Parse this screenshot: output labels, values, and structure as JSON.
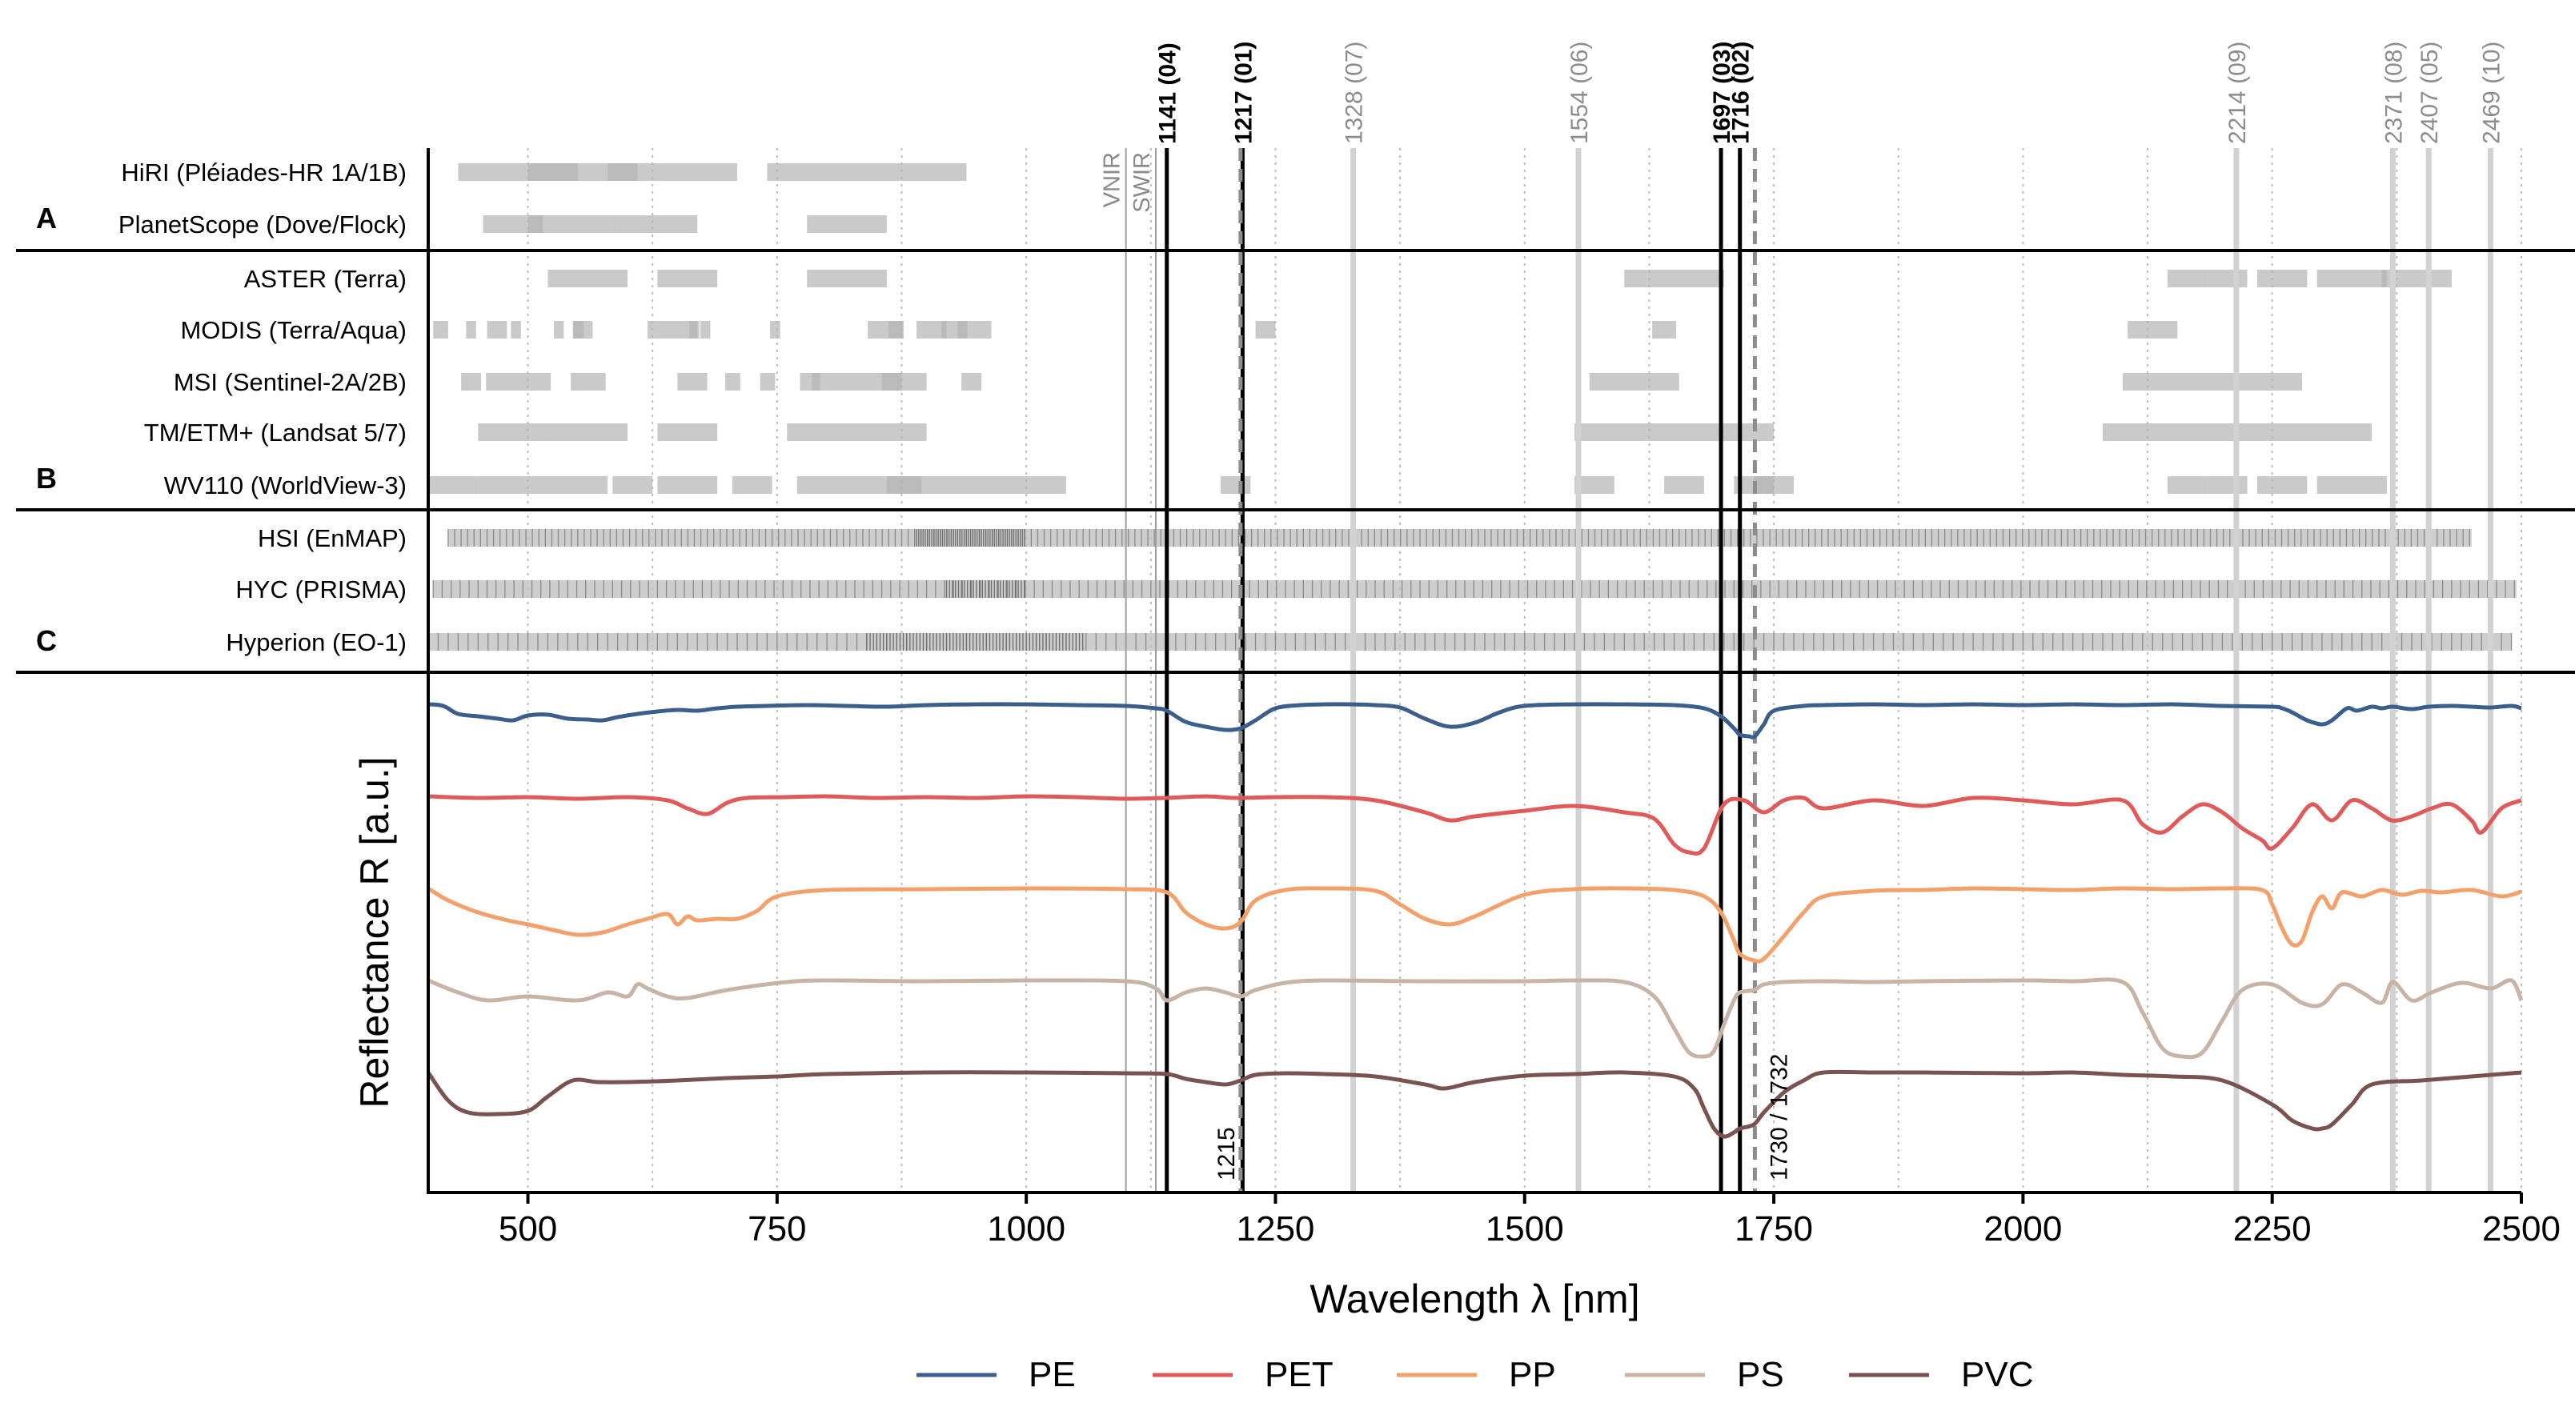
{
  "chart_data": {
    "type": "line",
    "xlabel": "Wavelength λ [nm]",
    "ylabel": "Reflectance R [a.u.]",
    "xlim": [
      400,
      2500
    ],
    "x_ticks": [
      500,
      750,
      1000,
      1250,
      1500,
      1750,
      2000,
      2250,
      2500
    ],
    "grid_dotted_x": [
      500,
      625,
      750,
      875,
      1000,
      1125,
      1250,
      1375,
      1500,
      1625,
      1750,
      1875,
      2000,
      2125,
      2250,
      2375,
      2500
    ],
    "region_labels": {
      "vnir": "VNIR",
      "swir": "SWIR",
      "vnir_x": 1100,
      "swir_x": 1130
    },
    "panel_letters": [
      "A",
      "B",
      "C"
    ],
    "vertical_markers": [
      {
        "x": 1141,
        "label": "1141 (04)",
        "style": "black"
      },
      {
        "x": 1217,
        "label": "1217 (01)",
        "style": "black"
      },
      {
        "x": 1328,
        "label": "1328 (07)",
        "style": "gray"
      },
      {
        "x": 1554,
        "label": "1554 (06)",
        "style": "gray"
      },
      {
        "x": 1697,
        "label": "1697 (03)",
        "style": "black"
      },
      {
        "x": 1716,
        "label": "1716 (02)",
        "style": "black"
      },
      {
        "x": 2214,
        "label": "2214 (09)",
        "style": "gray"
      },
      {
        "x": 2371,
        "label": "2371 (08)",
        "style": "gray"
      },
      {
        "x": 2407,
        "label": "2407 (05)",
        "style": "gray"
      },
      {
        "x": 2469,
        "label": "2469 (10)",
        "style": "gray"
      }
    ],
    "dashed_markers": [
      {
        "x": 1215,
        "label": "1215"
      },
      {
        "x": 1731,
        "label": "1730 / 1732"
      }
    ],
    "sensors": [
      {
        "name": "HiRI (Pléiades-HR 1A/1B)",
        "group": "A",
        "bands": [
          [
            430,
            550
          ],
          [
            500,
            610
          ],
          [
            580,
            710
          ],
          [
            740,
            940
          ]
        ]
      },
      {
        "name": "PlanetScope (Dove/Flock)",
        "group": "A",
        "bands": [
          [
            455,
            515
          ],
          [
            500,
            590
          ],
          [
            590,
            670
          ],
          [
            780,
            860
          ]
        ]
      },
      {
        "name": "ASTER (Terra)",
        "group": "B",
        "bands": [
          [
            520,
            600
          ],
          [
            630,
            690
          ],
          [
            780,
            860
          ],
          [
            1600,
            1700
          ],
          [
            2145,
            2185
          ],
          [
            2185,
            2225
          ],
          [
            2235,
            2285
          ],
          [
            2295,
            2365
          ],
          [
            2360,
            2430
          ]
        ]
      },
      {
        "name": "MODIS (Terra/Aqua)",
        "group": "B",
        "bands": [
          [
            405,
            420
          ],
          [
            438,
            448
          ],
          [
            459,
            479
          ],
          [
            483,
            493
          ],
          [
            526,
            536
          ],
          [
            545,
            565
          ],
          [
            546,
            556
          ],
          [
            620,
            670
          ],
          [
            662,
            672
          ],
          [
            673,
            683
          ],
          [
            743,
            753
          ],
          [
            841,
            876
          ],
          [
            862,
            877
          ],
          [
            890,
            920
          ],
          [
            931,
            941
          ],
          [
            915,
            965
          ],
          [
            1230,
            1250
          ],
          [
            1628,
            1652
          ],
          [
            2105,
            2155
          ]
        ]
      },
      {
        "name": "MSI (Sentinel-2A/2B)",
        "group": "B",
        "bands": [
          [
            433,
            453
          ],
          [
            458,
            523
          ],
          [
            543,
            578
          ],
          [
            650,
            680
          ],
          [
            698,
            713
          ],
          [
            733,
            748
          ],
          [
            773,
            793
          ],
          [
            785,
            900
          ],
          [
            855,
            875
          ],
          [
            935,
            955
          ],
          [
            1565,
            1655
          ],
          [
            2100,
            2280
          ]
        ]
      },
      {
        "name": "TM/ETM+ (Landsat 5/7)",
        "group": "B",
        "bands": [
          [
            450,
            520
          ],
          [
            520,
            600
          ],
          [
            630,
            690
          ],
          [
            760,
            900
          ],
          [
            1550,
            1750
          ],
          [
            2080,
            2350
          ]
        ]
      },
      {
        "name": "WV110 (WorldView-3)",
        "group": "B",
        "bands": [
          [
            400,
            450
          ],
          [
            450,
            510
          ],
          [
            510,
            580
          ],
          [
            585,
            625
          ],
          [
            630,
            690
          ],
          [
            705,
            745
          ],
          [
            770,
            895
          ],
          [
            860,
            1040
          ],
          [
            1195,
            1225
          ],
          [
            1550,
            1590
          ],
          [
            1640,
            1680
          ],
          [
            1710,
            1750
          ],
          [
            1730,
            1770
          ],
          [
            2145,
            2185
          ],
          [
            2185,
            2225
          ],
          [
            2235,
            2285
          ],
          [
            2295,
            2365
          ]
        ]
      },
      {
        "name": "HSI (EnMAP)",
        "group": "C",
        "start": 420,
        "end": 2450,
        "step": 6.5,
        "dense": [
          890,
          1000
        ]
      },
      {
        "name": "HYC (PRISMA)",
        "group": "C",
        "start": 405,
        "end": 2495,
        "step": 9,
        "dense": [
          920,
          1000
        ]
      },
      {
        "name": "Hyperion (EO-1)",
        "group": "C",
        "start": 400,
        "end": 2490,
        "step": 10,
        "dense": [
          840,
          1060
        ]
      }
    ],
    "series": [
      {
        "name": "PE",
        "color": "#3b5e8c",
        "offset": 0.0,
        "x": [
          400,
          415,
          430,
          450,
          470,
          485,
          500,
          520,
          540,
          560,
          575,
          590,
          610,
          630,
          650,
          670,
          690,
          710,
          740,
          780,
          820,
          860,
          900,
          950,
          1000,
          1050,
          1100,
          1130,
          1141,
          1160,
          1180,
          1200,
          1215,
          1230,
          1250,
          1275,
          1300,
          1325,
          1350,
          1375,
          1400,
          1425,
          1450,
          1475,
          1500,
          1550,
          1600,
          1650,
          1680,
          1697,
          1710,
          1716,
          1725,
          1731,
          1740,
          1750,
          1780,
          1800,
          1850,
          1900,
          1950,
          2000,
          2050,
          2100,
          2150,
          2200,
          2250,
          2260,
          2270,
          2285,
          2300,
          2310,
          2325,
          2335,
          2350,
          2360,
          2371,
          2390,
          2407,
          2430,
          2450,
          2469,
          2490,
          2500
        ],
        "y": [
          1.0,
          0.98,
          0.88,
          0.85,
          0.82,
          0.8,
          0.86,
          0.87,
          0.82,
          0.81,
          0.8,
          0.84,
          0.88,
          0.91,
          0.93,
          0.92,
          0.95,
          0.97,
          0.98,
          0.99,
          0.98,
          0.97,
          0.99,
          1.0,
          1.0,
          0.99,
          0.98,
          0.95,
          0.92,
          0.78,
          0.72,
          0.68,
          0.7,
          0.8,
          0.95,
          0.99,
          1.0,
          1.0,
          0.99,
          0.96,
          0.82,
          0.72,
          0.77,
          0.9,
          0.98,
          1.0,
          1.0,
          0.99,
          0.95,
          0.85,
          0.7,
          0.62,
          0.6,
          0.6,
          0.75,
          0.92,
          0.98,
          0.99,
          1.0,
          0.99,
          1.0,
          0.99,
          1.0,
          0.99,
          1.0,
          0.98,
          0.97,
          0.95,
          0.9,
          0.8,
          0.75,
          0.8,
          0.95,
          0.92,
          0.97,
          0.95,
          0.97,
          0.94,
          0.97,
          0.98,
          0.97,
          0.96,
          0.98,
          0.95
        ]
      },
      {
        "name": "PET",
        "color": "#e05a5a",
        "offset": 1.0,
        "x": [
          400,
          450,
          500,
          550,
          600,
          640,
          660,
          680,
          700,
          720,
          760,
          800,
          850,
          900,
          950,
          1000,
          1050,
          1100,
          1140,
          1180,
          1210,
          1250,
          1300,
          1350,
          1400,
          1425,
          1450,
          1500,
          1550,
          1600,
          1630,
          1650,
          1665,
          1680,
          1700,
          1720,
          1740,
          1760,
          1780,
          1800,
          1850,
          1900,
          1950,
          2000,
          2050,
          2100,
          2120,
          2140,
          2160,
          2180,
          2200,
          2220,
          2240,
          2250,
          2270,
          2290,
          2310,
          2330,
          2350,
          2370,
          2390,
          2410,
          2430,
          2450,
          2460,
          2480,
          2500
        ],
        "y": [
          1.0,
          0.98,
          0.99,
          0.97,
          0.99,
          0.95,
          0.85,
          0.78,
          0.92,
          0.98,
          0.99,
          1.0,
          0.98,
          0.99,
          0.98,
          1.0,
          0.99,
          0.97,
          0.98,
          1.0,
          0.98,
          0.99,
          0.99,
          0.95,
          0.8,
          0.7,
          0.75,
          0.82,
          0.88,
          0.8,
          0.72,
          0.4,
          0.3,
          0.35,
          0.9,
          0.95,
          0.8,
          0.95,
          0.98,
          0.85,
          0.95,
          0.88,
          0.98,
          0.95,
          0.9,
          0.95,
          0.65,
          0.55,
          0.75,
          0.9,
          0.8,
          0.6,
          0.45,
          0.35,
          0.6,
          0.9,
          0.7,
          0.95,
          0.85,
          0.7,
          0.75,
          0.85,
          0.9,
          0.7,
          0.55,
          0.85,
          0.95
        ]
      },
      {
        "name": "PP",
        "color": "#f4a06a",
        "offset": 2.0,
        "x": [
          400,
          420,
          450,
          480,
          500,
          525,
          550,
          575,
          600,
          620,
          640,
          650,
          660,
          670,
          690,
          710,
          730,
          750,
          800,
          900,
          1000,
          1100,
          1141,
          1160,
          1180,
          1200,
          1215,
          1230,
          1260,
          1300,
          1350,
          1375,
          1400,
          1425,
          1450,
          1500,
          1550,
          1600,
          1650,
          1680,
          1697,
          1710,
          1716,
          1730,
          1740,
          1760,
          1780,
          1800,
          1850,
          1900,
          1950,
          2000,
          2050,
          2100,
          2150,
          2200,
          2240,
          2250,
          2260,
          2270,
          2280,
          2290,
          2300,
          2310,
          2320,
          2340,
          2360,
          2380,
          2400,
          2420,
          2450,
          2480,
          2500
        ],
        "y": [
          1.0,
          0.85,
          0.7,
          0.6,
          0.55,
          0.48,
          0.42,
          0.45,
          0.55,
          0.62,
          0.68,
          0.55,
          0.65,
          0.6,
          0.62,
          0.62,
          0.72,
          0.9,
          0.98,
          0.99,
          1.0,
          0.99,
          0.95,
          0.7,
          0.55,
          0.5,
          0.58,
          0.85,
          0.98,
          1.0,
          0.97,
          0.8,
          0.62,
          0.55,
          0.65,
          0.92,
          0.99,
          1.0,
          0.98,
          0.9,
          0.7,
          0.35,
          0.18,
          0.1,
          0.12,
          0.4,
          0.7,
          0.9,
          0.97,
          0.98,
          1.0,
          0.99,
          0.98,
          1.0,
          0.99,
          1.0,
          0.98,
          0.8,
          0.5,
          0.3,
          0.35,
          0.7,
          0.9,
          0.75,
          0.95,
          0.9,
          0.98,
          0.92,
          0.97,
          0.95,
          0.98,
          0.9,
          0.96
        ]
      },
      {
        "name": "PS",
        "color": "#c8b4a6",
        "offset": 3.0,
        "x": [
          400,
          430,
          460,
          500,
          550,
          580,
          600,
          610,
          620,
          640,
          660,
          700,
          760,
          800,
          900,
          1000,
          1100,
          1130,
          1141,
          1160,
          1180,
          1200,
          1215,
          1230,
          1260,
          1300,
          1400,
          1500,
          1550,
          1600,
          1630,
          1650,
          1665,
          1680,
          1690,
          1700,
          1710,
          1716,
          1730,
          1740,
          1760,
          1800,
          1850,
          1900,
          2000,
          2050,
          2100,
          2120,
          2140,
          2160,
          2180,
          2200,
          2220,
          2250,
          2280,
          2300,
          2320,
          2340,
          2360,
          2371,
          2390,
          2410,
          2440,
          2469,
          2490,
          2500
        ],
        "y": [
          1.0,
          0.85,
          0.75,
          0.8,
          0.75,
          0.85,
          0.8,
          0.95,
          0.9,
          0.8,
          0.78,
          0.88,
          0.98,
          1.0,
          0.99,
          1.0,
          0.99,
          0.9,
          0.75,
          0.85,
          0.9,
          0.85,
          0.8,
          0.88,
          0.97,
          1.0,
          0.99,
          0.99,
          1.0,
          0.98,
          0.8,
          0.4,
          0.1,
          0.05,
          0.12,
          0.45,
          0.75,
          0.85,
          0.88,
          0.95,
          0.98,
          0.99,
          0.98,
          0.99,
          1.0,
          0.99,
          0.98,
          0.6,
          0.15,
          0.05,
          0.1,
          0.5,
          0.88,
          0.95,
          0.72,
          0.7,
          0.95,
          0.85,
          0.72,
          0.98,
          0.75,
          0.85,
          0.97,
          0.9,
          1.0,
          0.75
        ]
      },
      {
        "name": "PVC",
        "color": "#7a5350",
        "offset": 4.0,
        "x": [
          400,
          420,
          440,
          470,
          500,
          520,
          545,
          570,
          600,
          650,
          700,
          750,
          800,
          900,
          1000,
          1100,
          1141,
          1160,
          1180,
          1200,
          1215,
          1230,
          1260,
          1300,
          1350,
          1400,
          1420,
          1450,
          1500,
          1550,
          1600,
          1650,
          1670,
          1680,
          1690,
          1700,
          1710,
          1716,
          1730,
          1740,
          1760,
          1780,
          1800,
          1850,
          1900,
          2000,
          2050,
          2100,
          2150,
          2200,
          2250,
          2270,
          2290,
          2300,
          2310,
          2330,
          2350,
          2400,
          2450,
          2500
        ],
        "y": [
          1.0,
          0.65,
          0.5,
          0.48,
          0.52,
          0.7,
          0.9,
          0.88,
          0.88,
          0.9,
          0.93,
          0.95,
          0.98,
          1.0,
          1.0,
          0.99,
          0.98,
          0.92,
          0.88,
          0.85,
          0.9,
          0.97,
          0.99,
          0.98,
          0.95,
          0.85,
          0.8,
          0.88,
          0.96,
          0.98,
          1.0,
          0.95,
          0.8,
          0.55,
          0.3,
          0.2,
          0.25,
          0.3,
          0.35,
          0.5,
          0.75,
          0.9,
          1.0,
          1.0,
          1.0,
          0.99,
          1.0,
          0.97,
          0.95,
          0.9,
          0.6,
          0.4,
          0.3,
          0.3,
          0.35,
          0.6,
          0.85,
          0.9,
          0.95,
          1.0
        ]
      }
    ]
  }
}
